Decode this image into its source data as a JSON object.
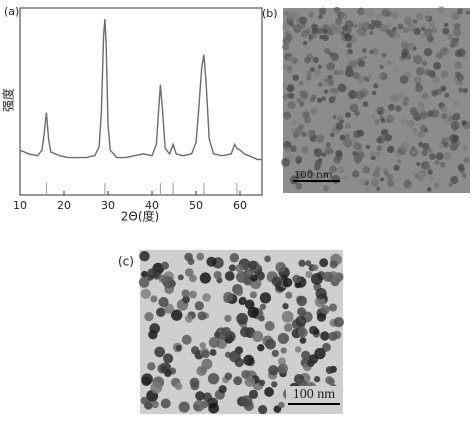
{
  "chart_data": {
    "type": "line",
    "panel_label": "(a)",
    "x_label": "2Θ(度)",
    "y_label": "强度",
    "x": [
      10,
      12,
      14,
      15,
      15.5,
      16,
      16.5,
      17,
      19,
      21,
      23,
      25,
      27,
      28,
      28.5,
      29,
      29.3,
      29.6,
      30,
      30.5,
      32,
      34,
      36,
      38,
      40,
      41,
      41.5,
      41.9,
      42.3,
      43,
      44,
      44.8,
      45.5,
      47,
      49,
      50,
      50.6,
      51.3,
      51.8,
      52.3,
      53,
      54,
      56,
      58,
      58.8,
      59.3,
      60,
      61,
      62,
      64,
      65
    ],
    "values": [
      24,
      22,
      21,
      24,
      33,
      44,
      30,
      23,
      21,
      20,
      20,
      20,
      21,
      26,
      45,
      85,
      94,
      80,
      38,
      24,
      20,
      20,
      21,
      22,
      21,
      27,
      45,
      59,
      48,
      25,
      22,
      27,
      22,
      21,
      22,
      28,
      45,
      68,
      75,
      60,
      30,
      22,
      21,
      22,
      27,
      25,
      24,
      22,
      21,
      19,
      19
    ],
    "color": "#6b6b6b",
    "reference_positions": [
      16,
      29.3,
      41.9,
      44.8,
      51.8,
      59.3
    ],
    "xlim": [
      10,
      65
    ],
    "xticks": [
      10,
      20,
      30,
      40,
      50,
      60
    ],
    "ylim": [
      0,
      100
    ]
  },
  "images": [
    {
      "label": "(b)",
      "scale_bar": "100 nm"
    },
    {
      "label": "(c)",
      "scale_bar": "100 nm"
    }
  ]
}
